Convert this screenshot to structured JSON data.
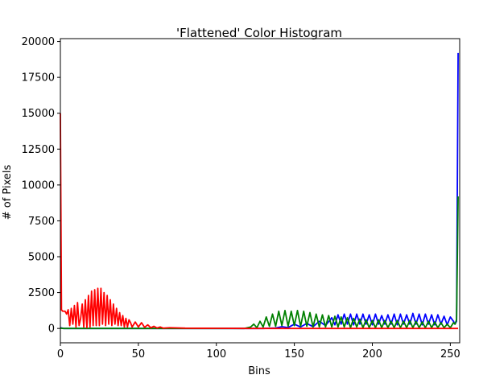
{
  "chart_data": {
    "type": "line",
    "title": "'Flattened' Color Histogram",
    "xlabel": "Bins",
    "ylabel": "# of Pixels",
    "xlim": [
      0,
      256
    ],
    "ylim": [
      -1000,
      20200
    ],
    "xticks": [
      0,
      50,
      100,
      150,
      200,
      250
    ],
    "yticks": [
      0,
      2500,
      5000,
      7500,
      10000,
      12500,
      15000,
      17500,
      20000
    ],
    "grid": false,
    "legend": "none",
    "series": [
      {
        "color": "#0000ff",
        "x": [
          0,
          2,
          120,
          130,
          138,
          142,
          146,
          150,
          154,
          158,
          162,
          166,
          170,
          174,
          176,
          178,
          180,
          182,
          184,
          186,
          188,
          190,
          192,
          194,
          196,
          198,
          200,
          202,
          204,
          206,
          208,
          210,
          212,
          214,
          216,
          218,
          220,
          222,
          224,
          226,
          228,
          230,
          232,
          234,
          236,
          238,
          240,
          242,
          244,
          246,
          248,
          250,
          252,
          253,
          254,
          255
        ],
        "y": [
          50,
          0,
          0,
          0,
          30,
          120,
          60,
          300,
          100,
          350,
          120,
          500,
          200,
          750,
          250,
          950,
          300,
          1000,
          300,
          1000,
          250,
          1000,
          300,
          1000,
          300,
          950,
          250,
          1000,
          300,
          900,
          300,
          950,
          300,
          1000,
          250,
          1000,
          300,
          950,
          300,
          1050,
          300,
          1000,
          250,
          1000,
          300,
          950,
          250,
          950,
          300,
          850,
          250,
          800,
          500,
          300,
          500,
          19200
        ]
      },
      {
        "color": "#008000",
        "x": [
          0,
          2,
          118,
          122,
          124,
          126,
          128,
          130,
          132,
          134,
          136,
          138,
          140,
          142,
          144,
          146,
          148,
          150,
          152,
          154,
          156,
          158,
          160,
          162,
          164,
          166,
          168,
          170,
          172,
          174,
          176,
          178,
          180,
          182,
          184,
          186,
          188,
          190,
          192,
          194,
          196,
          198,
          200,
          202,
          204,
          206,
          208,
          210,
          212,
          214,
          216,
          218,
          220,
          222,
          224,
          226,
          228,
          230,
          232,
          234,
          236,
          238,
          240,
          242,
          244,
          246,
          248,
          250,
          252,
          253,
          254,
          255
        ],
        "y": [
          20,
          0,
          0,
          100,
          300,
          50,
          500,
          100,
          800,
          150,
          1000,
          150,
          1200,
          200,
          1250,
          150,
          1200,
          200,
          1250,
          150,
          1200,
          150,
          1100,
          100,
          1000,
          100,
          950,
          100,
          900,
          100,
          850,
          100,
          800,
          100,
          750,
          50,
          700,
          100,
          650,
          50,
          600,
          50,
          550,
          50,
          600,
          50,
          550,
          50,
          500,
          50,
          550,
          50,
          500,
          50,
          550,
          50,
          500,
          50,
          450,
          50,
          500,
          50,
          450,
          50,
          400,
          50,
          300,
          50,
          400,
          300,
          600,
          9200
        ]
      },
      {
        "color": "#ff0000",
        "x": [
          0,
          0.7,
          1.5,
          3,
          4,
          5,
          6,
          7,
          8,
          9,
          10,
          11,
          12,
          13,
          14,
          15,
          16,
          17,
          18,
          19,
          20,
          21,
          22,
          23,
          24,
          25,
          26,
          27,
          28,
          29,
          30,
          31,
          32,
          33,
          34,
          35,
          36,
          37,
          38,
          39,
          40,
          41,
          42,
          43,
          44,
          45,
          46,
          48,
          50,
          52,
          54,
          56,
          58,
          60,
          62,
          64,
          66,
          70,
          80,
          100,
          120,
          150,
          200,
          255
        ],
        "y": [
          15000,
          1300,
          1200,
          1200,
          1000,
          1300,
          200,
          1400,
          300,
          1600,
          100,
          1800,
          200,
          700,
          1700,
          100,
          2000,
          50,
          2300,
          100,
          2600,
          200,
          2700,
          200,
          2800,
          200,
          2800,
          300,
          2500,
          200,
          2300,
          300,
          2000,
          200,
          1700,
          300,
          1400,
          200,
          1100,
          200,
          900,
          100,
          700,
          100,
          600,
          400,
          100,
          450,
          100,
          400,
          80,
          250,
          50,
          150,
          30,
          100,
          20,
          50,
          20,
          10,
          0,
          0,
          0,
          0
        ]
      }
    ]
  }
}
